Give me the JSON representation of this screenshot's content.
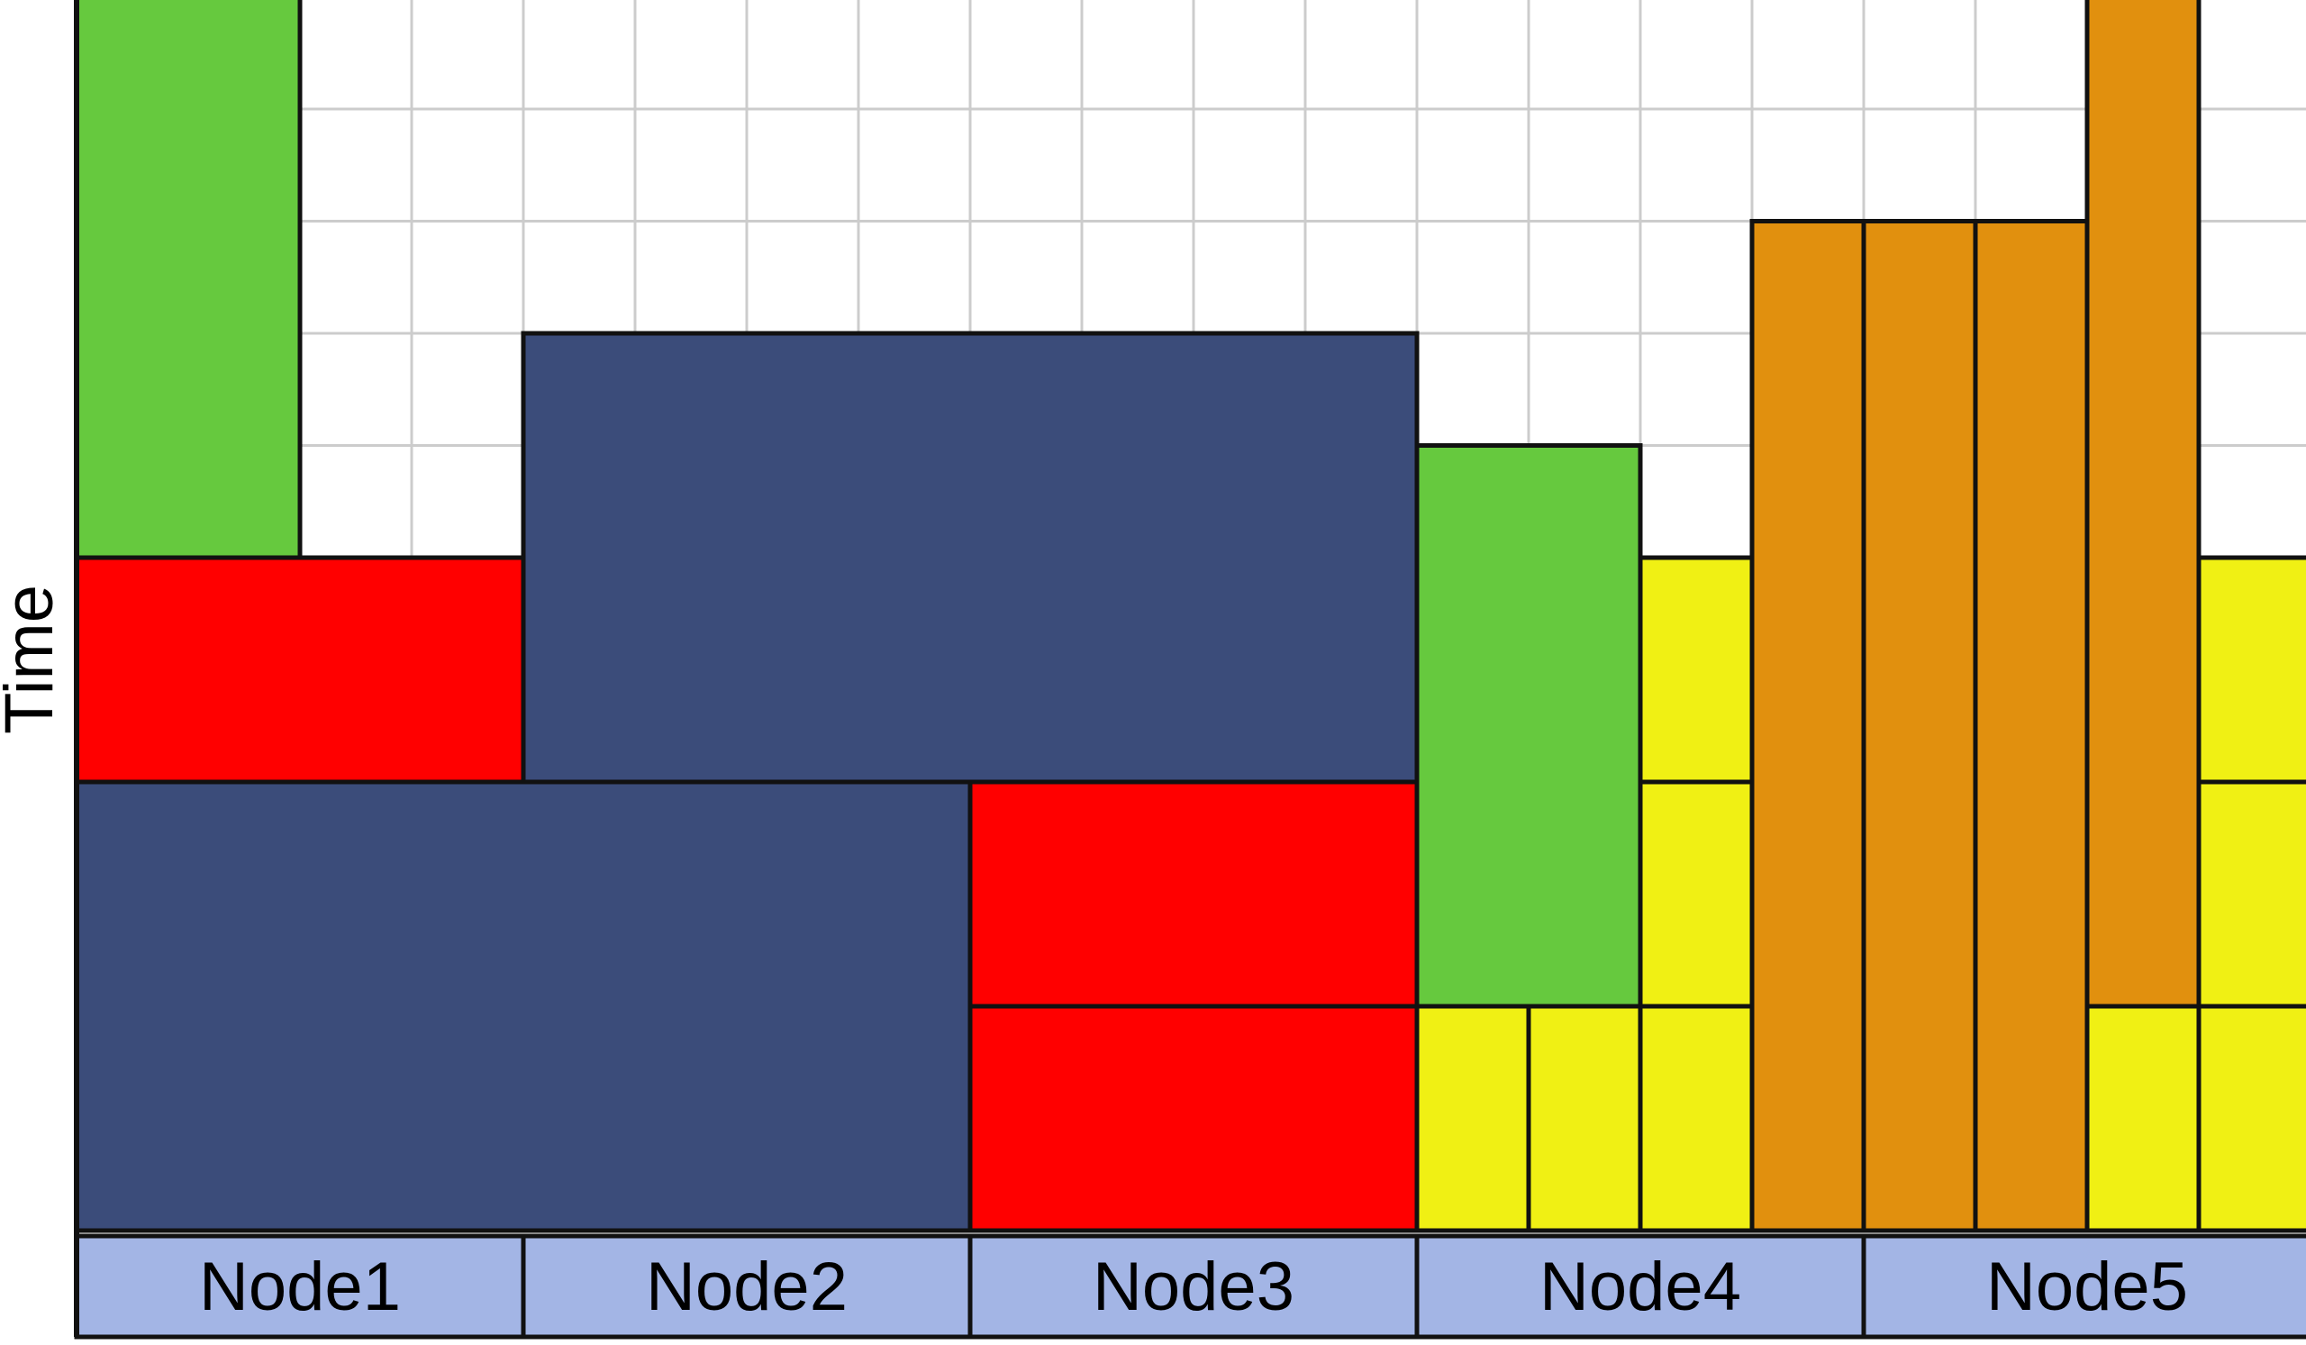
{
  "axis": {
    "y_label": "Time"
  },
  "grid": {
    "columns": 20,
    "rows": 11
  },
  "colors": {
    "green": "#66c93e",
    "red": "#ff0000",
    "navy": "#3b4c7a",
    "yellow": "#f0f014",
    "orange": "#e1900e",
    "node_bar": "#a3b5e5",
    "grid_line": "#cccccc",
    "outline": "#111111"
  },
  "nodes": [
    {
      "label": "Node1"
    },
    {
      "label": "Node2"
    },
    {
      "label": "Node3"
    },
    {
      "label": "Node4"
    },
    {
      "label": "Node5"
    }
  ],
  "jobs": [
    {
      "color": "green",
      "col": 0,
      "width": 2,
      "start": 6,
      "length": 5
    },
    {
      "color": "red",
      "col": 0,
      "width": 4,
      "start": 4,
      "length": 2
    },
    {
      "color": "navy",
      "col": 0,
      "width": 8,
      "start": 0,
      "length": 4
    },
    {
      "color": "navy",
      "col": 4,
      "width": 8,
      "start": 4,
      "length": 4
    },
    {
      "color": "red",
      "col": 8,
      "width": 4,
      "start": 0,
      "length": 2
    },
    {
      "color": "red",
      "col": 8,
      "width": 4,
      "start": 2,
      "length": 2
    },
    {
      "color": "yellow",
      "col": 12,
      "width": 1,
      "start": 0,
      "length": 2
    },
    {
      "color": "yellow",
      "col": 13,
      "width": 1,
      "start": 0,
      "length": 2
    },
    {
      "color": "yellow",
      "col": 14,
      "width": 1,
      "start": 0,
      "length": 2
    },
    {
      "color": "yellow",
      "col": 14,
      "width": 1,
      "start": 2,
      "length": 2
    },
    {
      "color": "yellow",
      "col": 14,
      "width": 1,
      "start": 4,
      "length": 2
    },
    {
      "color": "green",
      "col": 12,
      "width": 2,
      "start": 2,
      "length": 5
    },
    {
      "color": "orange",
      "col": 15,
      "width": 1,
      "start": 0,
      "length": 9
    },
    {
      "color": "orange",
      "col": 16,
      "width": 1,
      "start": 0,
      "length": 9
    },
    {
      "color": "orange",
      "col": 17,
      "width": 1,
      "start": 0,
      "length": 9
    },
    {
      "color": "orange",
      "col": 18,
      "width": 1,
      "start": 2,
      "length": 9
    },
    {
      "color": "yellow",
      "col": 18,
      "width": 1,
      "start": 0,
      "length": 2
    },
    {
      "color": "yellow",
      "col": 19,
      "width": 1,
      "start": 0,
      "length": 2
    },
    {
      "color": "yellow",
      "col": 19,
      "width": 1,
      "start": 2,
      "length": 2
    },
    {
      "color": "yellow",
      "col": 19,
      "width": 1,
      "start": 4,
      "length": 2
    }
  ]
}
